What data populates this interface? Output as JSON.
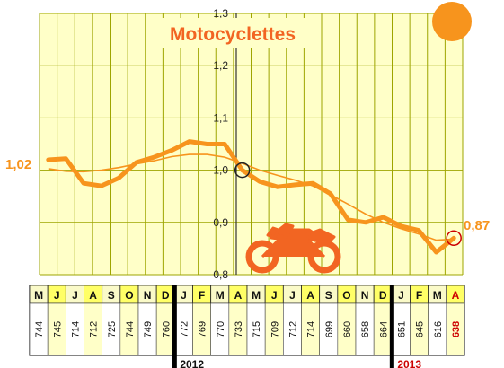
{
  "colors": {
    "plot_bg": "#ffffc8",
    "grid": "#9ea500",
    "line_main": "#f7941d",
    "line_trend": "#f7941d",
    "title": "#f26522",
    "moto": "#f26522",
    "sun": "#f7941d",
    "table_highlight": "#ffff66",
    "table_month_bg": "#fafac8",
    "last_value": "#cc0000",
    "year_2013": "#cc0000"
  },
  "icons": {
    "moto": "motorcycle-icon",
    "sun": "sun-circle-icon"
  },
  "chart_data": {
    "type": "line",
    "title": "Motocyclettes",
    "ylim": [
      0.8,
      1.3
    ],
    "yticks": [
      "0,8",
      "0,9",
      "1,0",
      "1,1",
      "1,2",
      "1,3"
    ],
    "grid": true,
    "x": [
      "M",
      "J",
      "J",
      "A",
      "S",
      "O",
      "N",
      "D",
      "J",
      "F",
      "M",
      "A",
      "M",
      "J",
      "J",
      "A",
      "S",
      "O",
      "N",
      "D",
      "J",
      "F",
      "M",
      "A"
    ],
    "series": [
      {
        "role": "ratio",
        "values": [
          1.02,
          1.022,
          0.975,
          0.97,
          0.985,
          1.015,
          1.025,
          1.038,
          1.055,
          1.05,
          1.05,
          1.0,
          0.978,
          0.968,
          0.972,
          0.975,
          0.955,
          0.905,
          0.9,
          0.91,
          0.893,
          0.885,
          0.843,
          0.87
        ]
      },
      {
        "role": "trend",
        "values": [
          1.003,
          0.998,
          0.997,
          1.0,
          1.005,
          1.012,
          1.018,
          1.026,
          1.03,
          1.03,
          1.025,
          1.013,
          1.0,
          0.99,
          0.981,
          0.97,
          0.953,
          0.935,
          0.916,
          0.9,
          0.888,
          0.878,
          0.866,
          0.868
        ]
      }
    ],
    "start_label": "1,02",
    "end_label": "0,87",
    "marked_points": [
      11,
      23
    ]
  },
  "table": {
    "months": [
      "M",
      "J",
      "J",
      "A",
      "S",
      "O",
      "N",
      "D",
      "J",
      "F",
      "M",
      "A",
      "M",
      "J",
      "J",
      "A",
      "S",
      "O",
      "N",
      "D",
      "J",
      "F",
      "M",
      "A"
    ],
    "counts": [
      "744",
      "745",
      "714",
      "712",
      "725",
      "744",
      "749",
      "760",
      "772",
      "769",
      "770",
      "733",
      "715",
      "709",
      "712",
      "714",
      "699",
      "660",
      "658",
      "664",
      "651",
      "645",
      "616",
      "638"
    ],
    "years": [
      "2012",
      "2013"
    ]
  }
}
